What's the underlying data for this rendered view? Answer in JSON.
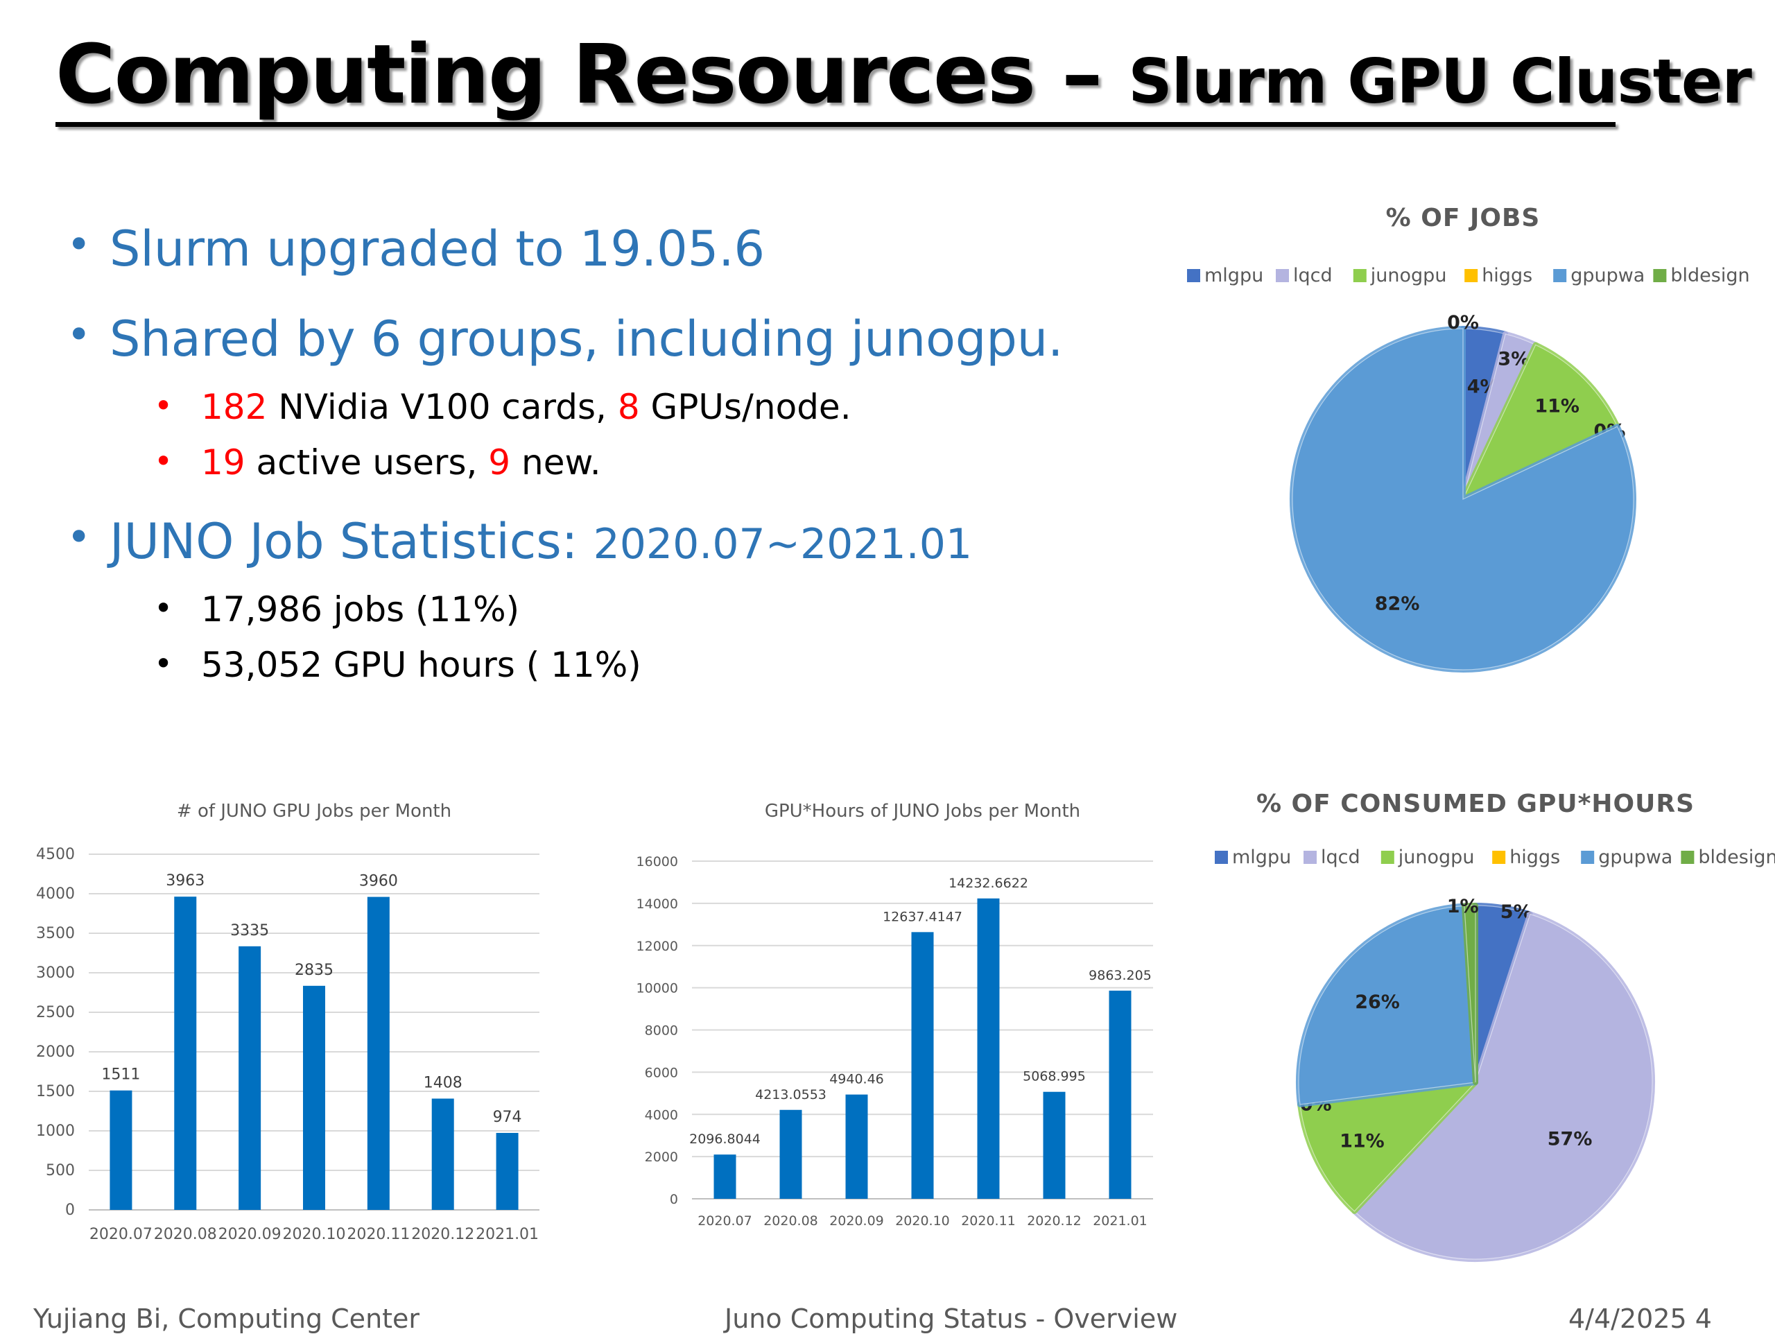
{
  "slide": {
    "title_main": "Computing Resources – ",
    "title_sub": "Slurm GPU Cluster",
    "bullets": {
      "b1": "Slurm upgraded to 19.05.6",
      "b2": "Shared by 6 groups, including junogpu.",
      "b2_sub1": {
        "n1": "182",
        "t1": " NVidia V100 cards, ",
        "n2": "8",
        "t2": " GPUs/node."
      },
      "b2_sub2": {
        "n1": "19",
        "t1": " active users, ",
        "n2": "9",
        "t2": " new."
      },
      "b3_main": "JUNO Job Statistics: ",
      "b3_range": "2020.07~2021.01",
      "b3_sub1": "17,986 jobs (11%)",
      "b3_sub2": "53,052 GPU hours ( 11%)"
    },
    "footer": {
      "left": "Yujiang Bi,  Computing Center",
      "center": "Juno Computing Status - Overview",
      "right": "4/4/2025    4"
    },
    "colors": {
      "accent_blue": "#2e75b6",
      "highlight_red": "#ff0000",
      "bar_blue": "#0070c0",
      "mlgpu": "#4472c4",
      "lqcd": "#b4b4e0",
      "junogpu": "#8fce4e",
      "higgs": "#ffc000",
      "gpupwa": "#5b9bd5",
      "bldesign": "#70ad47"
    }
  },
  "chart_data": [
    {
      "type": "pie",
      "title": "% OF JOBS",
      "legend_position": "top",
      "categories": [
        "mlgpu",
        "lqcd",
        "junogpu",
        "higgs",
        "gpupwa",
        "bldesign"
      ],
      "values": [
        4,
        3,
        11,
        0,
        82,
        0
      ],
      "labels": [
        "4%",
        "3%",
        "11%",
        "0%",
        "82%",
        "0%"
      ]
    },
    {
      "type": "pie",
      "title": "% OF CONSUMED GPU*HOURS",
      "legend_position": "top",
      "categories": [
        "mlgpu",
        "lqcd",
        "junogpu",
        "higgs",
        "gpupwa",
        "bldesign"
      ],
      "values": [
        5,
        57,
        11,
        0,
        26,
        1
      ],
      "labels": [
        "5%",
        "57%",
        "11%",
        "0%",
        "26%",
        "1%"
      ]
    },
    {
      "type": "bar",
      "title": "# of JUNO GPU Jobs per Month",
      "categories": [
        "2020.07",
        "2020.08",
        "2020.09",
        "2020.10",
        "2020.11",
        "2020.12",
        "2021.01"
      ],
      "values": [
        1511,
        3963,
        3335,
        2835,
        3960,
        1408,
        974
      ],
      "value_labels": [
        "1511",
        "3963",
        "3335",
        "2835",
        "3960",
        "1408",
        "974"
      ],
      "ylim": [
        0,
        4500
      ],
      "yticks": [
        "0",
        "500",
        "1000",
        "1500",
        "2000",
        "2500",
        "3000",
        "3500",
        "4000",
        "4500"
      ],
      "grid": true
    },
    {
      "type": "bar",
      "title": "GPU*Hours  of JUNO Jobs per Month",
      "categories": [
        "2020.07",
        "2020.08",
        "2020.09",
        "2020.10",
        "2020.11",
        "2020.12",
        "2021.01"
      ],
      "values": [
        2096.8044,
        4213.0553,
        4940.46,
        12637.4147,
        14232.6622,
        5068.995,
        9863.205
      ],
      "value_labels": [
        "2096.8044",
        "4213.0553",
        "4940.46",
        "12637.4147",
        "14232.6622",
        "5068.995",
        "9863.205"
      ],
      "ylim": [
        0,
        16000
      ],
      "yticks": [
        "0",
        "2000",
        "4000",
        "6000",
        "8000",
        "10000",
        "12000",
        "14000",
        "16000"
      ],
      "grid": true
    }
  ]
}
